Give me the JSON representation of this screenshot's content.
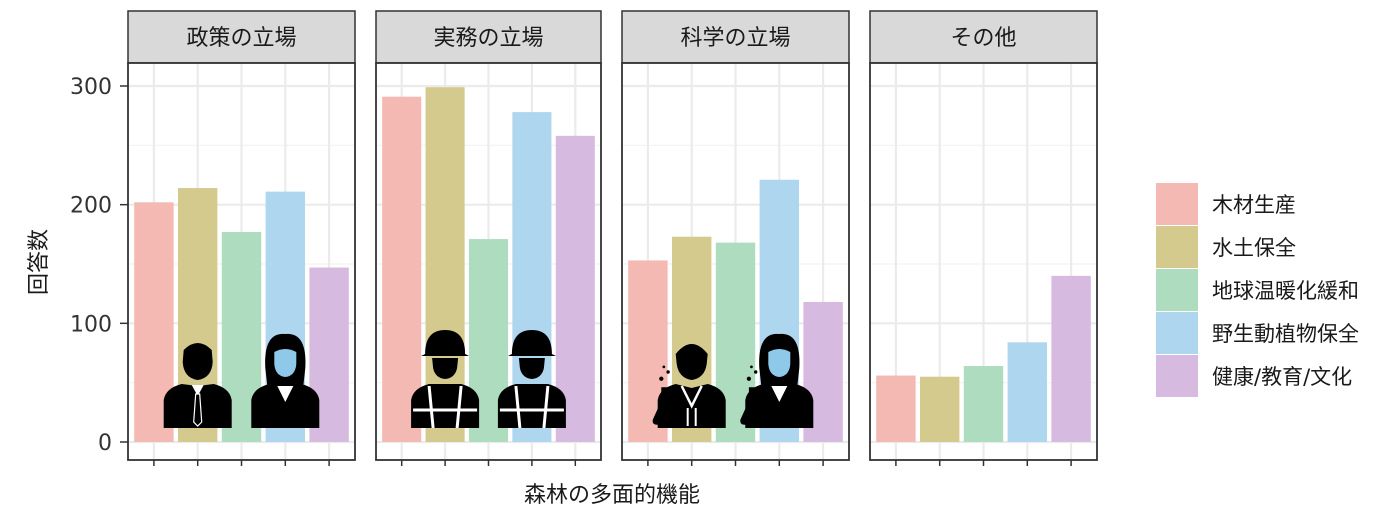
{
  "chart_data": {
    "type": "bar",
    "title": "",
    "xlabel": "森林の多面的機能",
    "ylabel": "回答数",
    "ylim": [
      0,
      300
    ],
    "yticks": [
      0,
      100,
      200,
      300
    ],
    "grid": true,
    "legend_position": "right",
    "categories": [
      "木材生産",
      "水土保全",
      "地球温暖化緩和",
      "野生動植物保全",
      "健康/教育/文化"
    ],
    "colors": [
      "#F4B9B2",
      "#D5CA8E",
      "#ADDCBE",
      "#AED6EE",
      "#D6BADF"
    ],
    "facets": [
      {
        "label": "政策の立場",
        "values": [
          202,
          214,
          177,
          211,
          147
        ],
        "icon": "policy-person-icons"
      },
      {
        "label": "実務の立場",
        "values": [
          291,
          299,
          171,
          278,
          258
        ],
        "icon": "field-worker-icons"
      },
      {
        "label": "科学の立場",
        "values": [
          153,
          173,
          168,
          221,
          118
        ],
        "icon": "scientist-icons"
      },
      {
        "label": "その他",
        "values": [
          56,
          55,
          64,
          84,
          140
        ],
        "icon": ""
      }
    ]
  }
}
